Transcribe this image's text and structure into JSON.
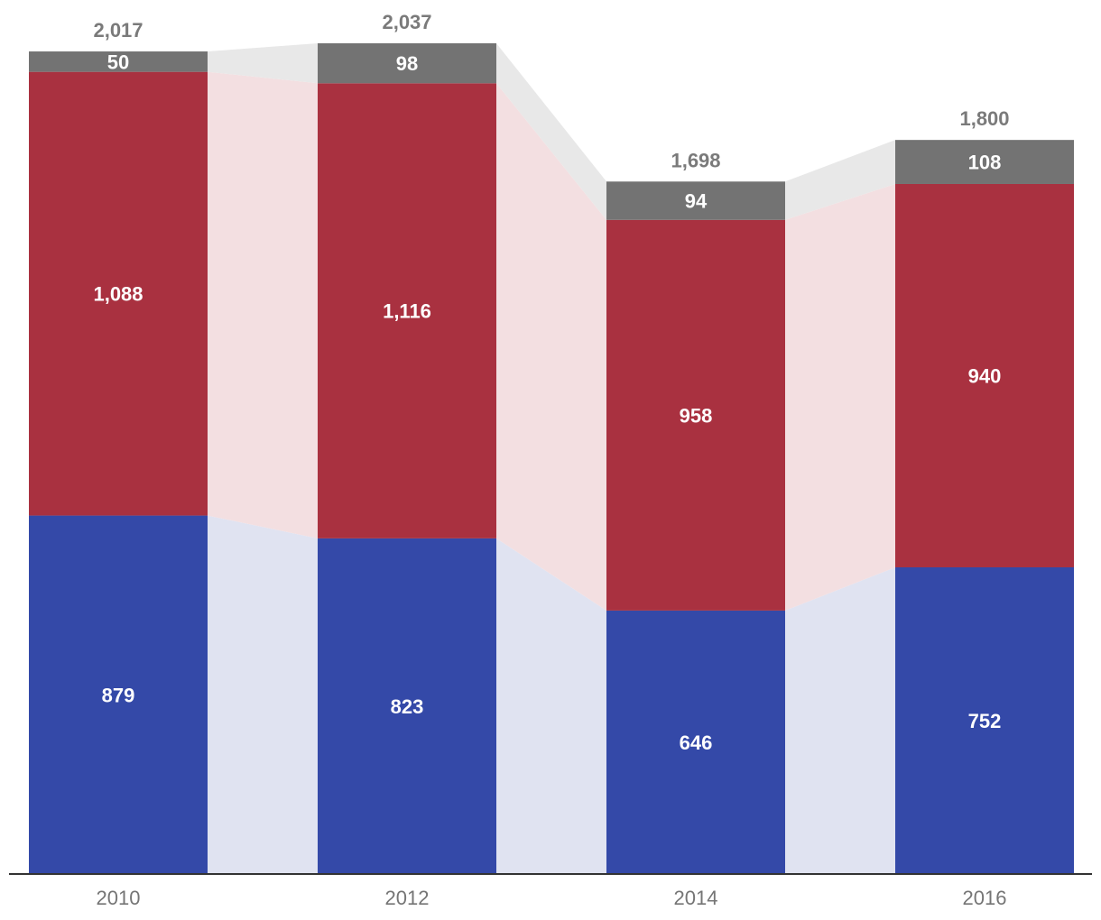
{
  "chart_data": {
    "type": "bar",
    "stacked": true,
    "categories": [
      "2010",
      "2012",
      "2014",
      "2016"
    ],
    "series": [
      {
        "values": [
          879,
          823,
          646,
          752
        ],
        "color": "#3449a8",
        "connector_color": "#e0e3f1"
      },
      {
        "values": [
          1088,
          1116,
          958,
          940
        ],
        "color": "#a93140",
        "connector_color": "#f3dfe1"
      },
      {
        "values": [
          50,
          98,
          94,
          108
        ],
        "color": "#737373",
        "connector_color": "#e8e8e8"
      }
    ],
    "value_labels": [
      [
        "879",
        "823",
        "646",
        "752"
      ],
      [
        "1,088",
        "1,116",
        "958",
        "940"
      ],
      [
        "50",
        "98",
        "94",
        "108"
      ]
    ],
    "totals": [
      2017,
      2037,
      1698,
      1800
    ],
    "total_labels": [
      "2,017",
      "2,037",
      "1,698",
      "1,800"
    ],
    "ylim": [
      0,
      2037
    ],
    "grid": false,
    "legend": "none",
    "title": "",
    "xlabel": "",
    "ylabel": ""
  }
}
